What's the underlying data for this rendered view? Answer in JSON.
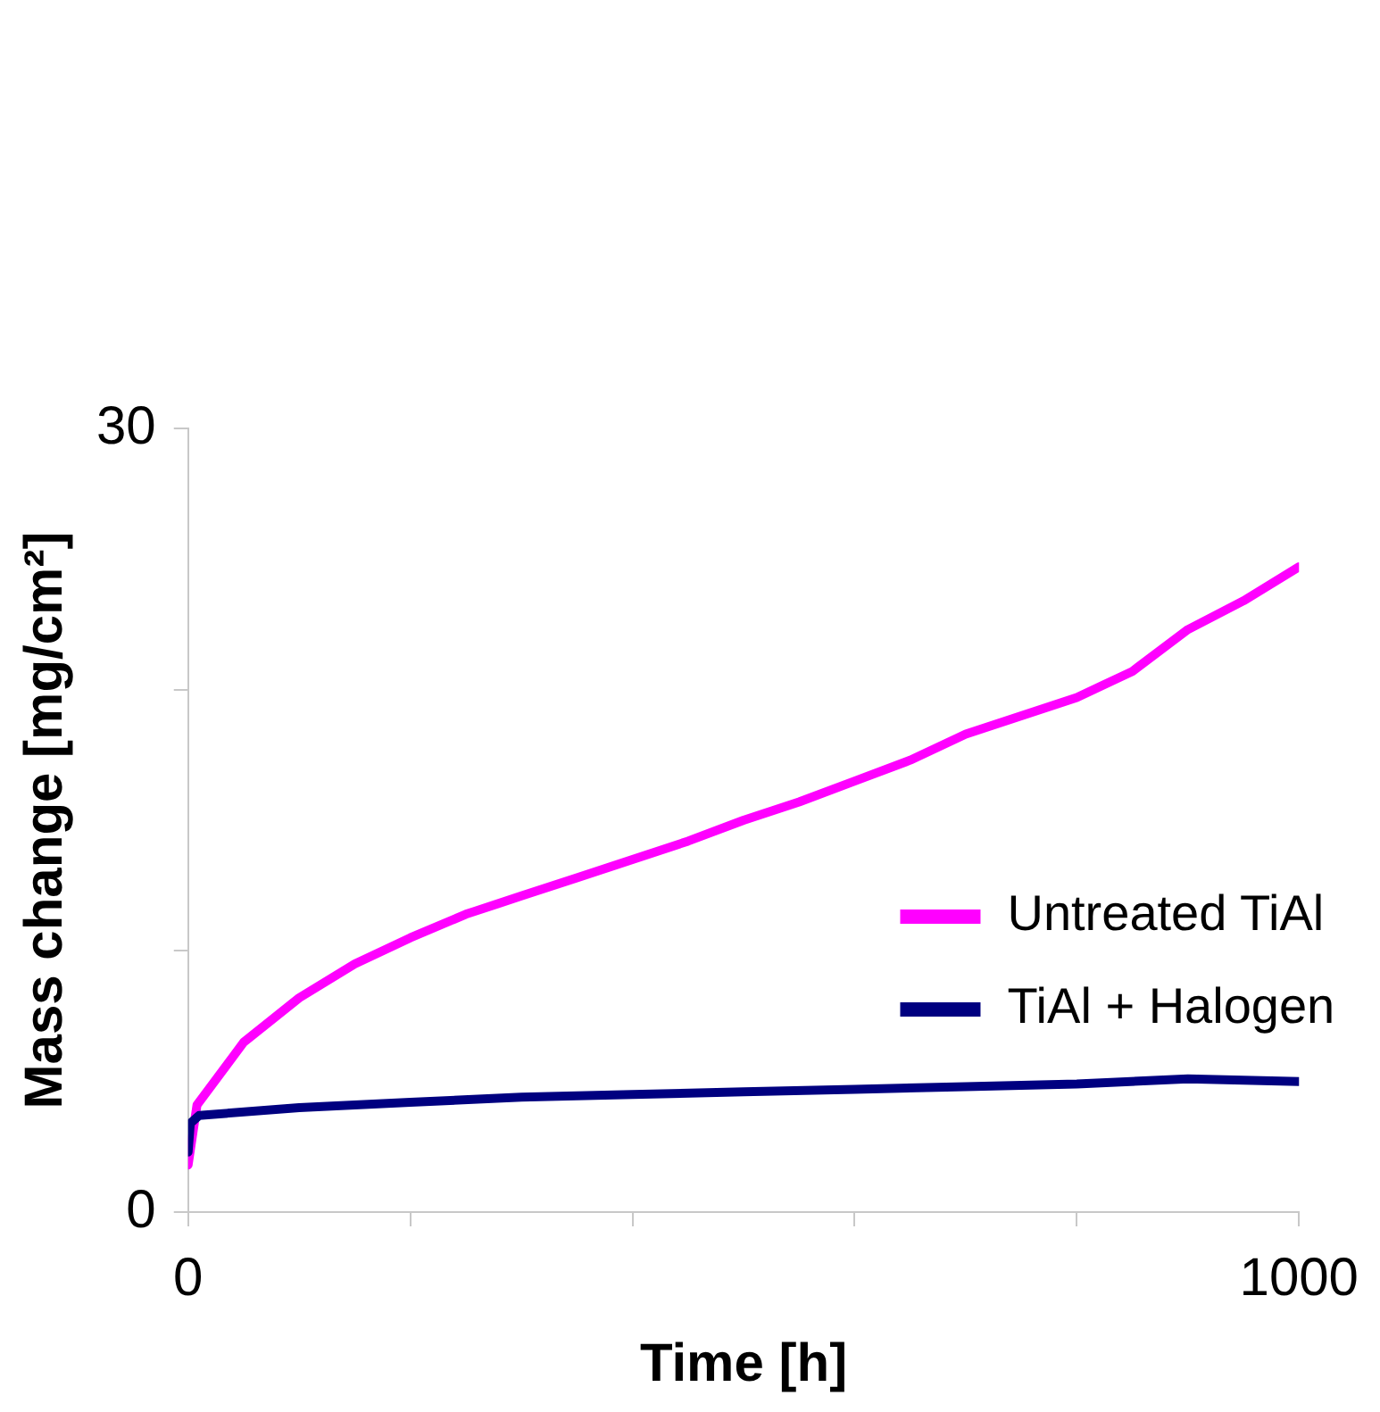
{
  "chart_data": {
    "type": "line",
    "xlabel": "Time [h]",
    "ylabel": "Mass change [mg/cm²]",
    "xlim": [
      0,
      1000
    ],
    "ylim": [
      0,
      30
    ],
    "xticks": [
      0,
      {
        "value": 200,
        "label": null
      },
      {
        "value": 400,
        "label": null
      },
      {
        "value": 600,
        "label": null
      },
      {
        "value": 800,
        "label": null
      },
      1000
    ],
    "yticks": [
      0,
      {
        "value": 10,
        "label": null
      },
      {
        "value": 20,
        "label": null
      },
      30
    ],
    "grid": false,
    "legend": "right",
    "marker": "none",
    "line_style": "solid",
    "series": [
      {
        "name": "Untreated TiAl",
        "color": "#ff00ff",
        "x": [
          0,
          8,
          50,
          100,
          150,
          200,
          250,
          300,
          350,
          400,
          450,
          500,
          550,
          600,
          650,
          700,
          750,
          800,
          850,
          900,
          950,
          1000
        ],
        "values": [
          1.8,
          4.1,
          6.5,
          8.2,
          9.5,
          10.5,
          11.4,
          12.1,
          12.8,
          13.5,
          14.2,
          15.0,
          15.7,
          16.5,
          17.3,
          18.3,
          19.0,
          19.7,
          20.7,
          22.3,
          23.4,
          24.7
        ]
      },
      {
        "name": "TiAl + Halogen",
        "color": "#000080",
        "x": [
          0,
          2,
          10,
          100,
          200,
          300,
          400,
          500,
          600,
          700,
          800,
          900,
          1000
        ],
        "values": [
          2.3,
          3.4,
          3.7,
          4.0,
          4.2,
          4.4,
          4.5,
          4.6,
          4.7,
          4.8,
          4.9,
          5.1,
          5.0
        ]
      }
    ]
  }
}
